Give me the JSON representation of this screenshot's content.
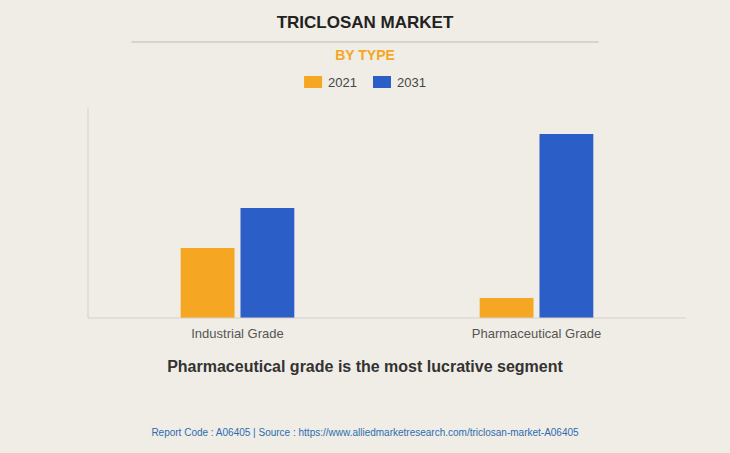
{
  "chart_data": {
    "type": "bar",
    "title": "TRICLOSAN MARKET",
    "subtitle": "BY TYPE",
    "categories": [
      "Industrial Grade",
      "Pharmaceutical Grade"
    ],
    "series": [
      {
        "name": "2021",
        "color": "#F5A623",
        "values": [
          35,
          10
        ]
      },
      {
        "name": "2031",
        "color": "#2B5EC7",
        "values": [
          55,
          92
        ]
      }
    ],
    "ylim": [
      0,
      105
    ],
    "yticks": [],
    "grid": false,
    "tick_labels": "x",
    "legend": "top",
    "annotations": [
      "Pharmaceutical grade is the most lucrative segment",
      "Report Code : A06405  |  Source : https://www.alliedmarketresearch.com/triclosan-market-A06405"
    ]
  }
}
